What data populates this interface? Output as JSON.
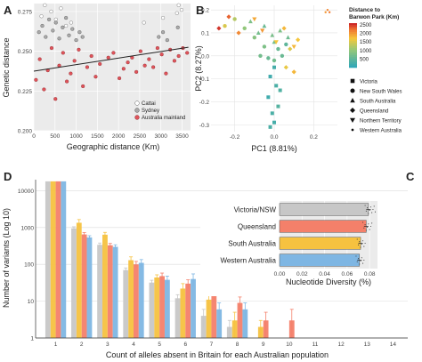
{
  "panels": {
    "A": "A",
    "B": "B",
    "C": "C",
    "D": "D"
  },
  "colors": {
    "victoria_nsw": "#c7c7c7",
    "queensland": "#f4806a",
    "south_australia": "#f6c240",
    "western_australia": "#7eb6e3",
    "cattai": "#ffffff",
    "sydney": "#aaaaaa",
    "mainland": "#e0535a"
  },
  "chart_data": [
    {
      "id": "A",
      "type": "scatter",
      "xlabel": "Geographic distance (Km)",
      "ylabel": "Genetic distance",
      "xlim": [
        0,
        3700
      ],
      "ylim": [
        0.2,
        0.28
      ],
      "xticks": [
        0,
        500,
        1000,
        1500,
        2000,
        2500,
        3000,
        3500
      ],
      "yticks": [
        0.2,
        0.225,
        0.25,
        0.275
      ],
      "ytick_labels": [
        "0.200",
        "0.225",
        "0.250",
        "0.275"
      ],
      "legend": [
        "Cattai",
        "Sydney",
        "Australia mainland"
      ],
      "legend_position": "bottom-right",
      "trend_line": {
        "x": [
          0,
          3650
        ],
        "y": [
          0.2375,
          0.2525
        ]
      },
      "series": [
        {
          "name": "Cattai",
          "x": [
            180,
            260,
            410,
            520,
            640,
            760,
            880,
            2600,
            3050,
            3380,
            3420,
            3490
          ],
          "y": [
            0.272,
            0.279,
            0.275,
            0.27,
            0.277,
            0.266,
            0.268,
            0.268,
            0.271,
            0.274,
            0.279,
            0.276
          ]
        },
        {
          "name": "Sydney",
          "x": [
            120,
            200,
            280,
            360,
            450,
            520,
            600,
            680,
            760,
            830,
            910,
            1000,
            1080,
            1150,
            2950,
            3050,
            3150,
            3400
          ],
          "y": [
            0.262,
            0.266,
            0.259,
            0.27,
            0.263,
            0.268,
            0.258,
            0.265,
            0.271,
            0.26,
            0.264,
            0.257,
            0.262,
            0.259,
            0.259,
            0.262,
            0.257,
            0.265
          ]
        },
        {
          "name": "Australia mainland",
          "x": [
            50,
            140,
            240,
            330,
            420,
            510,
            600,
            690,
            780,
            870,
            960,
            1060,
            1160,
            1260,
            1360,
            1460,
            1560,
            1760,
            1880,
            2020,
            2120,
            2220,
            2320,
            2420,
            2520,
            2620,
            2720,
            2820,
            2920,
            3020,
            3120,
            3220,
            3320,
            3420,
            3520,
            3620
          ],
          "y": [
            0.232,
            0.245,
            0.226,
            0.238,
            0.252,
            0.22,
            0.241,
            0.249,
            0.231,
            0.236,
            0.244,
            0.251,
            0.228,
            0.24,
            0.247,
            0.234,
            0.242,
            0.246,
            0.249,
            0.233,
            0.239,
            0.243,
            0.246,
            0.237,
            0.25,
            0.241,
            0.245,
            0.24,
            0.252,
            0.248,
            0.236,
            0.251,
            0.244,
            0.247,
            0.252,
            0.249
          ]
        }
      ]
    },
    {
      "id": "B",
      "type": "scatter",
      "xlabel": "PC1 (8.81%)",
      "ylabel": "PC2 (8.27%)",
      "xlim": [
        -0.32,
        0.32
      ],
      "ylim": [
        -0.33,
        0.22
      ],
      "xticks": [
        -0.2,
        0.0,
        0.2
      ],
      "xtick_labels": [
        "-0.2",
        "0.0",
        "0.2"
      ],
      "yticks": [
        -0.3,
        -0.2,
        -0.1,
        0.0,
        0.1,
        0.2
      ],
      "ytick_labels": [
        "-0.3",
        "-0.2",
        "-0.1",
        "0.0",
        "0.1",
        "0.2"
      ],
      "colorbar": {
        "title": "Distance to\nBarwon Park (Km)",
        "min": 0,
        "max": 2600,
        "ticks": [
          500,
          1000,
          1500,
          2000,
          2500
        ]
      },
      "shape_legend": [
        "Victoria",
        "New South Wales",
        "South Australia",
        "Queensland",
        "Northern Territory",
        "Western Australia"
      ],
      "points": [
        {
          "state": "Victoria",
          "pts": [
            [
              0.0,
              -0.05,
              250
            ],
            [
              -0.02,
              -0.09,
              200
            ],
            [
              0.01,
              -0.13,
              300
            ],
            [
              -0.03,
              -0.18,
              200
            ],
            [
              0.02,
              -0.22,
              400
            ],
            [
              -0.01,
              -0.25,
              300
            ],
            [
              0.0,
              -0.29,
              250
            ],
            [
              -0.02,
              -0.31,
              300
            ],
            [
              0.03,
              -0.15,
              350
            ]
          ]
        },
        {
          "state": "New South Wales",
          "pts": [
            [
              -0.25,
              0.13,
              1500
            ],
            [
              -0.2,
              0.16,
              1250
            ],
            [
              -0.15,
              0.12,
              1000
            ],
            [
              -0.1,
              0.08,
              900
            ],
            [
              -0.05,
              0.04,
              800
            ],
            [
              0.0,
              -0.02,
              700
            ],
            [
              0.04,
              0.0,
              600
            ],
            [
              -0.07,
              0.0,
              700
            ],
            [
              0.02,
              0.03,
              600
            ],
            [
              0.06,
              0.05,
              500
            ],
            [
              -0.03,
              -0.01,
              600
            ]
          ]
        },
        {
          "state": "South Australia",
          "pts": [
            [
              -0.12,
              0.15,
              800
            ],
            [
              -0.08,
              0.1,
              700
            ],
            [
              -0.05,
              0.13,
              600
            ],
            [
              -0.01,
              0.09,
              750
            ],
            [
              0.0,
              0.06,
              700
            ],
            [
              0.03,
              0.11,
              800
            ],
            [
              0.07,
              0.08,
              650
            ]
          ]
        },
        {
          "state": "Queensland",
          "pts": [
            [
              -0.28,
              0.12,
              2500
            ],
            [
              -0.23,
              0.17,
              2300
            ],
            [
              -0.18,
              0.1,
              2100
            ],
            [
              0.05,
              0.12,
              1800
            ],
            [
              0.08,
              0.03,
              1500
            ],
            [
              0.1,
              -0.07,
              1800
            ],
            [
              0.12,
              0.07,
              1700
            ],
            [
              0.06,
              -0.05,
              1600
            ]
          ]
        },
        {
          "state": "Northern Territory",
          "pts": [
            [
              -0.1,
              0.16,
              1900
            ],
            [
              -0.06,
              0.11,
              2000
            ],
            [
              0.01,
              0.06,
              1700
            ],
            [
              0.1,
              0.04,
              1800
            ]
          ]
        },
        {
          "state": "Western Australia",
          "pts": [
            [
              0.26,
              0.19,
              2000
            ],
            [
              0.27,
              0.2,
              2100
            ],
            [
              0.28,
              0.19,
              2200
            ]
          ]
        }
      ]
    },
    {
      "id": "C",
      "type": "bar",
      "orientation": "horizontal",
      "xlabel": "Nucleotide Diversity (%)",
      "categories": [
        "Victoria/NSW",
        "Queensland",
        "South Australia",
        "Western Australia"
      ],
      "values": [
        0.079,
        0.077,
        0.072,
        0.071
      ],
      "errors": [
        0.002,
        0.002,
        0.002,
        0.002
      ],
      "xlim": [
        0,
        0.087
      ],
      "xticks": [
        0.0,
        0.02,
        0.04,
        0.06,
        0.08
      ],
      "xtick_labels": [
        "0.00",
        "0.02",
        "0.04",
        "0.06",
        "0.08"
      ],
      "jitter": [
        [
          0.076,
          0.077,
          0.078,
          0.079,
          0.08,
          0.081,
          0.082,
          0.083,
          0.084,
          0.085
        ],
        [
          0.074,
          0.075,
          0.076,
          0.077,
          0.078,
          0.079,
          0.08,
          0.081,
          0.082
        ],
        [
          0.069,
          0.07,
          0.071,
          0.072,
          0.073,
          0.074,
          0.075,
          0.076
        ],
        [
          0.068,
          0.069,
          0.07,
          0.071,
          0.072,
          0.073,
          0.074,
          0.075
        ]
      ]
    },
    {
      "id": "D",
      "type": "bar",
      "xlabel": "Count of alleles absent in Britain for each Australian population",
      "ylabel": "Number of variants (Log 10)",
      "scale": "log",
      "ylim": [
        1,
        20000
      ],
      "yticks": [
        1,
        10,
        100,
        1000,
        10000
      ],
      "ytick_labels": [
        "1",
        "10",
        "100",
        "1000",
        "10000"
      ],
      "categories": [
        "1",
        "2",
        "3",
        "4",
        "5",
        "6",
        "7",
        "8",
        "9",
        "10",
        "11",
        "12",
        "13",
        "14"
      ],
      "series": [
        {
          "population": "Victoria/NSW",
          "values": [
            18000,
            950,
            340,
            70,
            32,
            12,
            4,
            2,
            1,
            1,
            1,
            1,
            1,
            1
          ],
          "errors": [
            0,
            100,
            40,
            10,
            5,
            3,
            2,
            1,
            0,
            0,
            0,
            0,
            0,
            0
          ]
        },
        {
          "population": "South Australia",
          "values": [
            18000,
            1350,
            640,
            130,
            44,
            22,
            11,
            3,
            2,
            1,
            1,
            1,
            1,
            1
          ],
          "errors": [
            0,
            300,
            100,
            30,
            8,
            8,
            5,
            2,
            1,
            0,
            0,
            0,
            0,
            0
          ]
        },
        {
          "population": "Queensland",
          "values": [
            18000,
            650,
            330,
            100,
            48,
            30,
            15,
            9,
            3,
            3,
            1,
            1,
            1,
            1
          ],
          "errors": [
            0,
            80,
            40,
            20,
            10,
            8,
            5,
            4,
            2,
            3,
            0,
            0,
            0,
            0
          ]
        },
        {
          "population": "Western Australia",
          "values": [
            18000,
            540,
            300,
            110,
            38,
            40,
            6,
            6,
            1,
            1,
            1,
            1,
            1,
            1
          ],
          "errors": [
            0,
            60,
            40,
            25,
            10,
            15,
            3,
            3,
            0,
            0,
            0,
            0,
            0,
            0
          ]
        }
      ]
    }
  ]
}
